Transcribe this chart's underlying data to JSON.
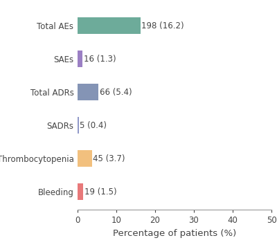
{
  "categories": [
    "Total AEs",
    "SAEs",
    "Total ADRs",
    "SADRs",
    "Thrombocytopenia",
    "Bleeding"
  ],
  "values": [
    16.2,
    1.3,
    5.4,
    0.4,
    3.7,
    1.5
  ],
  "labels": [
    "198 (16.2)",
    "16 (1.3)",
    "66 (5.4)",
    "5 (0.4)",
    "45 (3.7)",
    "19 (1.5)"
  ],
  "colors": [
    "#6dab9a",
    "#9b7fc4",
    "#8494b5",
    "#9098c8",
    "#f2c07e",
    "#e8797a"
  ],
  "xlabel": "Percentage of patients (%)",
  "xlim": [
    0,
    50
  ],
  "xticks": [
    0,
    10,
    20,
    30,
    40,
    50
  ],
  "bar_height": 0.5,
  "label_fontsize": 8.5,
  "tick_fontsize": 8.5,
  "xlabel_fontsize": 9.5,
  "figsize": [
    4.0,
    3.57
  ],
  "dpi": 100
}
